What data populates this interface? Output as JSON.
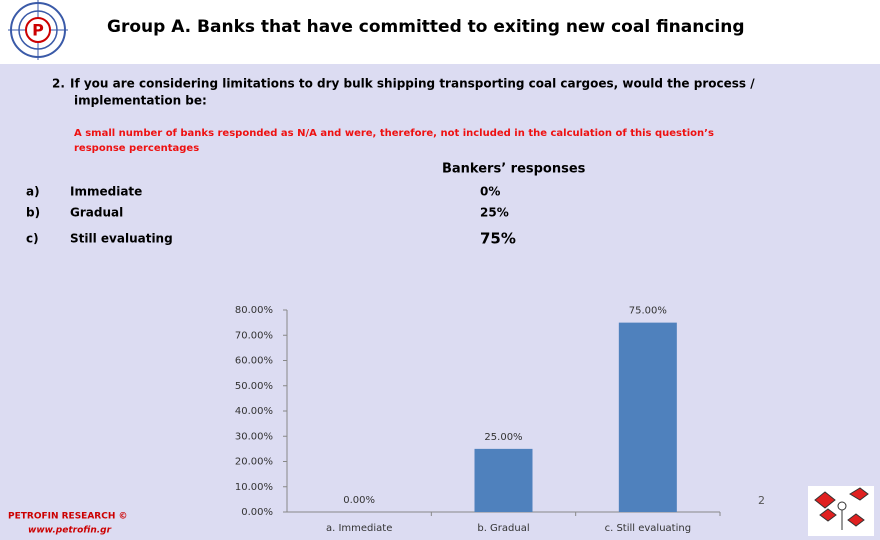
{
  "header": {
    "title": "Group A. Banks that have committed to exiting new coal financing"
  },
  "question": {
    "number": "2.",
    "text_line1": "If you are considering limitations to dry bulk shipping transporting coal cargoes, would   the process /",
    "text_line2": "implementation be:"
  },
  "note": {
    "line1": "A small number of banks responded as N/A and were, therefore, not  included in the calculation of this question’s",
    "line2": "response percentages"
  },
  "responses": {
    "heading": "Bankers’ responses",
    "rows": [
      [
        "a)",
        "Immediate",
        "0%"
      ],
      [
        "b)",
        "Gradual",
        "25%"
      ],
      [
        "c)",
        "Still evaluating",
        "75%"
      ]
    ]
  },
  "chart_data": {
    "type": "bar",
    "categories": [
      "a. Immediate",
      "b. Gradual",
      "c. Still evaluating"
    ],
    "values": [
      0,
      25,
      75
    ],
    "value_labels": [
      "0.00%",
      "25.00%",
      "75.00%"
    ],
    "color": "#4f81bd",
    "ylim": [
      0,
      80
    ],
    "yticks": [
      {
        "value": 0,
        "label": "0.00%"
      },
      {
        "value": 10,
        "label": "10.00%"
      },
      {
        "value": 20,
        "label": "20.00%"
      },
      {
        "value": 30,
        "label": "30.00%"
      },
      {
        "value": 40,
        "label": "40.00%"
      },
      {
        "value": 50,
        "label": "50.00%"
      },
      {
        "value": 60,
        "label": "60.00%"
      },
      {
        "value": 70,
        "label": "70.00%"
      },
      {
        "value": 80,
        "label": "80.00%"
      }
    ],
    "grid": false
  },
  "footer": {
    "brand": "PETROFIN RESEARCH ©",
    "url": "www.petrofin.gr",
    "page": "2"
  }
}
